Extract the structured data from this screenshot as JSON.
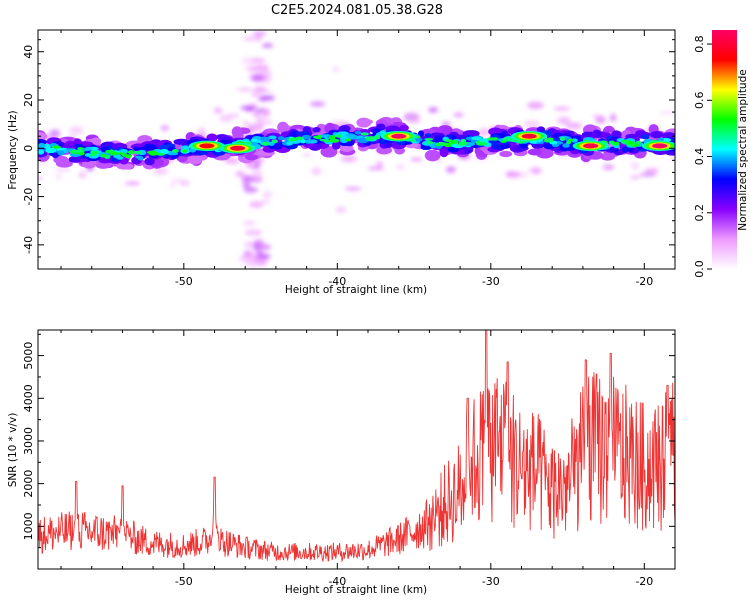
{
  "title": "C2E5.2024.081.05.38.G28",
  "chart_data": [
    {
      "type": "heatmap",
      "xlabel": "Height of straight line (km)",
      "ylabel": "Frequency (Hz)",
      "xlim": [
        -59.5,
        -18
      ],
      "ylim": [
        -50,
        49
      ],
      "x_ticks": [
        -50,
        -40,
        -30,
        -20
      ],
      "y_ticks": [
        -40,
        -20,
        0,
        20,
        40
      ],
      "colorbar": {
        "label": "Normalized spectral amplitude",
        "range": [
          0.0,
          0.85
        ],
        "ticks": [
          "0.0",
          "0.2",
          "0.4",
          "0.6",
          "0.8"
        ],
        "colors": [
          "#ffffff",
          "#ee99ff",
          "#8800ff",
          "#0000ff",
          "#00ffff",
          "#00ff00",
          "#ffff00",
          "#ff0000",
          "#ff0066"
        ]
      },
      "band": {
        "freq_center": [
          [
            -59.5,
            0
          ],
          [
            -57,
            -1
          ],
          [
            -54,
            -3
          ],
          [
            -52,
            -2
          ],
          [
            -50,
            0
          ],
          [
            -47,
            1
          ],
          [
            -44,
            3
          ],
          [
            -41,
            4
          ],
          [
            -38,
            5
          ],
          [
            -36,
            5
          ],
          [
            -33,
            2
          ],
          [
            -30,
            3
          ],
          [
            -27,
            4
          ],
          [
            -24,
            2
          ],
          [
            -21,
            2
          ],
          [
            -18,
            2
          ]
        ],
        "hot_spots": [
          {
            "x": -36,
            "freq": 5,
            "amp": 0.85
          },
          {
            "x": -27.5,
            "freq": 5,
            "amp": 0.8
          },
          {
            "x": -23.5,
            "freq": 1,
            "amp": 0.82
          },
          {
            "x": -19,
            "freq": 1,
            "amp": 0.85
          },
          {
            "x": -46.5,
            "freq": 0,
            "amp": 0.8
          },
          {
            "x": -48.5,
            "freq": 1,
            "amp": 0.75
          }
        ]
      }
    },
    {
      "type": "line",
      "xlabel": "Height of straight line (km)",
      "ylabel": "SNR (10 * v/v)",
      "xlim": [
        -59.5,
        -18
      ],
      "ylim": [
        0,
        5600
      ],
      "x_ticks": [
        -50,
        -40,
        -30,
        -20
      ],
      "y_ticks": [
        1000,
        2000,
        3000,
        4000,
        5000
      ],
      "color": "#ee3333",
      "envelope": [
        [
          -59.5,
          800
        ],
        [
          -57,
          900
        ],
        [
          -54,
          800
        ],
        [
          -52,
          600
        ],
        [
          -50,
          550
        ],
        [
          -48,
          700
        ],
        [
          -46,
          500
        ],
        [
          -44,
          400
        ],
        [
          -42,
          400
        ],
        [
          -40,
          400
        ],
        [
          -38,
          450
        ],
        [
          -36,
          700
        ],
        [
          -34,
          1100
        ],
        [
          -32,
          1800
        ],
        [
          -31,
          2500
        ],
        [
          -30,
          3000
        ],
        [
          -29,
          2700
        ],
        [
          -28,
          2300
        ],
        [
          -27,
          2200
        ],
        [
          -26,
          1800
        ],
        [
          -25,
          1900
        ],
        [
          -24,
          2600
        ],
        [
          -23,
          2800
        ],
        [
          -22,
          2700
        ],
        [
          -21,
          2500
        ],
        [
          -20,
          2300
        ],
        [
          -19,
          2400
        ],
        [
          -18,
          2600
        ]
      ],
      "peaks": [
        {
          "x": -30.3,
          "y": 5600
        },
        {
          "x": -28.9,
          "y": 4850
        },
        {
          "x": -23.8,
          "y": 4900
        },
        {
          "x": -22.2,
          "y": 5050
        },
        {
          "x": -48.0,
          "y": 2150
        },
        {
          "x": -57.0,
          "y": 2050
        },
        {
          "x": -54.0,
          "y": 1950
        },
        {
          "x": -31.5,
          "y": 4000
        },
        {
          "x": -18.5,
          "y": 4300
        }
      ]
    }
  ]
}
